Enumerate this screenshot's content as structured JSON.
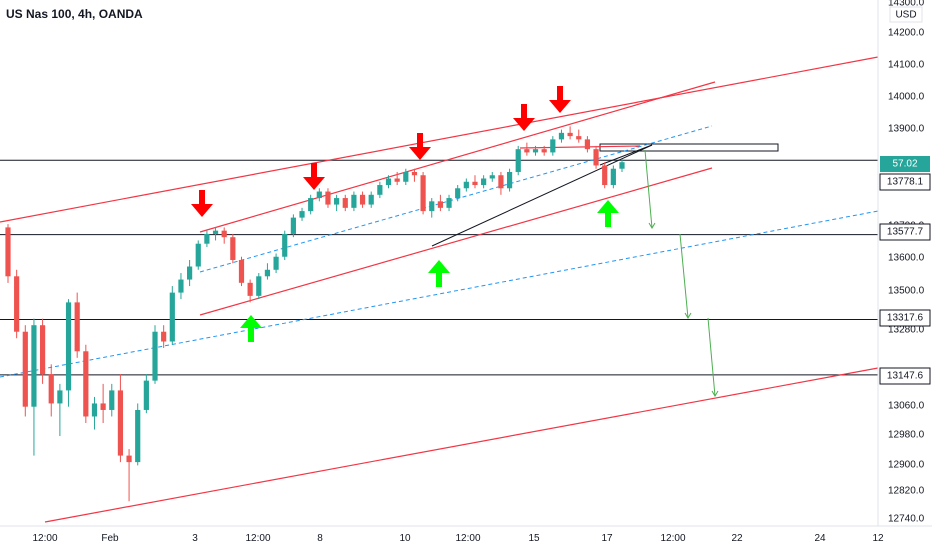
{
  "header": {
    "title": "US Nas 100, 4h, OANDA"
  },
  "chart_data": {
    "type": "candlestick",
    "symbol": "US Nas 100",
    "interval": "4h",
    "source": "OANDA",
    "currency": "USD",
    "ylim": [
      12720,
      14320
    ],
    "y_ticks": [
      "14300.0",
      "14200.0",
      "14100.0",
      "14000.0",
      "13900.0",
      "13700.0",
      "13600.0",
      "13500.0",
      "13400.0",
      "13280.0",
      "13060.0",
      "12980.0",
      "12900.0",
      "12820.0",
      "12740.0"
    ],
    "x_ticks": [
      "12:00",
      "Feb",
      "3",
      "12:00",
      "8",
      "10",
      "12:00",
      "15",
      "17",
      "12:00",
      "22",
      "24",
      "12"
    ],
    "price_labels": [
      {
        "text": "57.02",
        "price": 13818,
        "color": "#26a69a",
        "text_color": "#ffffff"
      },
      {
        "text": "13778.1",
        "price": 13778.1,
        "color": "#ffffff",
        "text_color": "#131722"
      },
      {
        "text": "13577.7",
        "price": 13577.7,
        "color": "#ffffff",
        "text_color": "#131722"
      },
      {
        "text": "13317.6",
        "price": 13317.6,
        "color": "#ffffff",
        "text_color": "#131722"
      },
      {
        "text": "13147.6",
        "price": 13147.6,
        "color": "#ffffff",
        "text_color": "#131722"
      }
    ],
    "horizontal_levels": [
      13806,
      13577.7,
      13317.6,
      13147.6
    ],
    "candles": [
      [
        13600,
        13610,
        13430,
        13450
      ],
      [
        13450,
        13470,
        13260,
        13280
      ],
      [
        13280,
        13300,
        13020,
        13050
      ],
      [
        13050,
        13320,
        12900,
        13300
      ],
      [
        13300,
        13320,
        13120,
        13150
      ],
      [
        13150,
        13180,
        13020,
        13060
      ],
      [
        13060,
        13120,
        12960,
        13100
      ],
      [
        13100,
        13380,
        13050,
        13370
      ],
      [
        13370,
        13400,
        13200,
        13220
      ],
      [
        13220,
        13240,
        13000,
        13020
      ],
      [
        13020,
        13080,
        12980,
        13060
      ],
      [
        13060,
        13120,
        13000,
        13040
      ],
      [
        13040,
        13120,
        13020,
        13100
      ],
      [
        13100,
        13150,
        12880,
        12900
      ],
      [
        12900,
        12920,
        12760,
        12880
      ],
      [
        12880,
        13060,
        12870,
        13040
      ],
      [
        13040,
        13150,
        13030,
        13130
      ],
      [
        13130,
        13300,
        13120,
        13280
      ],
      [
        13280,
        13300,
        13230,
        13250
      ],
      [
        13250,
        13420,
        13240,
        13400
      ],
      [
        13400,
        13460,
        13380,
        13440
      ],
      [
        13440,
        13500,
        13420,
        13480
      ],
      [
        13480,
        13560,
        13470,
        13550
      ],
      [
        13550,
        13590,
        13540,
        13580
      ],
      [
        13580,
        13600,
        13560,
        13590
      ],
      [
        13590,
        13600,
        13550,
        13570
      ],
      [
        13570,
        13580,
        13490,
        13500
      ],
      [
        13500,
        13510,
        13420,
        13430
      ],
      [
        13430,
        13440,
        13370,
        13390
      ],
      [
        13390,
        13460,
        13380,
        13450
      ],
      [
        13450,
        13490,
        13440,
        13470
      ],
      [
        13470,
        13520,
        13460,
        13510
      ],
      [
        13510,
        13590,
        13500,
        13580
      ],
      [
        13580,
        13640,
        13570,
        13630
      ],
      [
        13630,
        13660,
        13620,
        13650
      ],
      [
        13650,
        13700,
        13640,
        13690
      ],
      [
        13690,
        13720,
        13680,
        13710
      ],
      [
        13710,
        13720,
        13660,
        13670
      ],
      [
        13670,
        13700,
        13650,
        13690
      ],
      [
        13690,
        13700,
        13650,
        13660
      ],
      [
        13660,
        13710,
        13650,
        13700
      ],
      [
        13700,
        13710,
        13660,
        13670
      ],
      [
        13670,
        13710,
        13660,
        13700
      ],
      [
        13700,
        13740,
        13690,
        13730
      ],
      [
        13730,
        13760,
        13720,
        13750
      ],
      [
        13750,
        13770,
        13730,
        13740
      ],
      [
        13740,
        13780,
        13730,
        13770
      ],
      [
        13770,
        13780,
        13740,
        13760
      ],
      [
        13760,
        13770,
        13640,
        13650
      ],
      [
        13650,
        13690,
        13630,
        13680
      ],
      [
        13680,
        13700,
        13650,
        13660
      ],
      [
        13660,
        13700,
        13650,
        13690
      ],
      [
        13690,
        13730,
        13680,
        13720
      ],
      [
        13720,
        13750,
        13710,
        13740
      ],
      [
        13740,
        13760,
        13720,
        13730
      ],
      [
        13730,
        13760,
        13720,
        13750
      ],
      [
        13750,
        13770,
        13740,
        13760
      ],
      [
        13760,
        13770,
        13700,
        13720
      ],
      [
        13720,
        13780,
        13710,
        13770
      ],
      [
        13770,
        13850,
        13760,
        13840
      ],
      [
        13840,
        13860,
        13820,
        13830
      ],
      [
        13830,
        13850,
        13820,
        13840
      ],
      [
        13840,
        13850,
        13820,
        13830
      ],
      [
        13830,
        13880,
        13820,
        13870
      ],
      [
        13870,
        13900,
        13860,
        13890
      ],
      [
        13890,
        13910,
        13870,
        13880
      ],
      [
        13880,
        13900,
        13860,
        13870
      ],
      [
        13870,
        13880,
        13830,
        13840
      ],
      [
        13840,
        13850,
        13780,
        13790
      ],
      [
        13790,
        13800,
        13720,
        13730
      ],
      [
        13730,
        13790,
        13720,
        13780
      ],
      [
        13780,
        13810,
        13770,
        13800
      ]
    ],
    "drawings": [
      {
        "type": "down-arrow",
        "color": "#ff0000",
        "count": 5
      },
      {
        "type": "up-arrow",
        "color": "#00ff00",
        "count": 3
      },
      {
        "type": "trend-channel",
        "color": "#ff0000"
      },
      {
        "type": "dashed-midline",
        "color": "#2196f3"
      }
    ]
  }
}
